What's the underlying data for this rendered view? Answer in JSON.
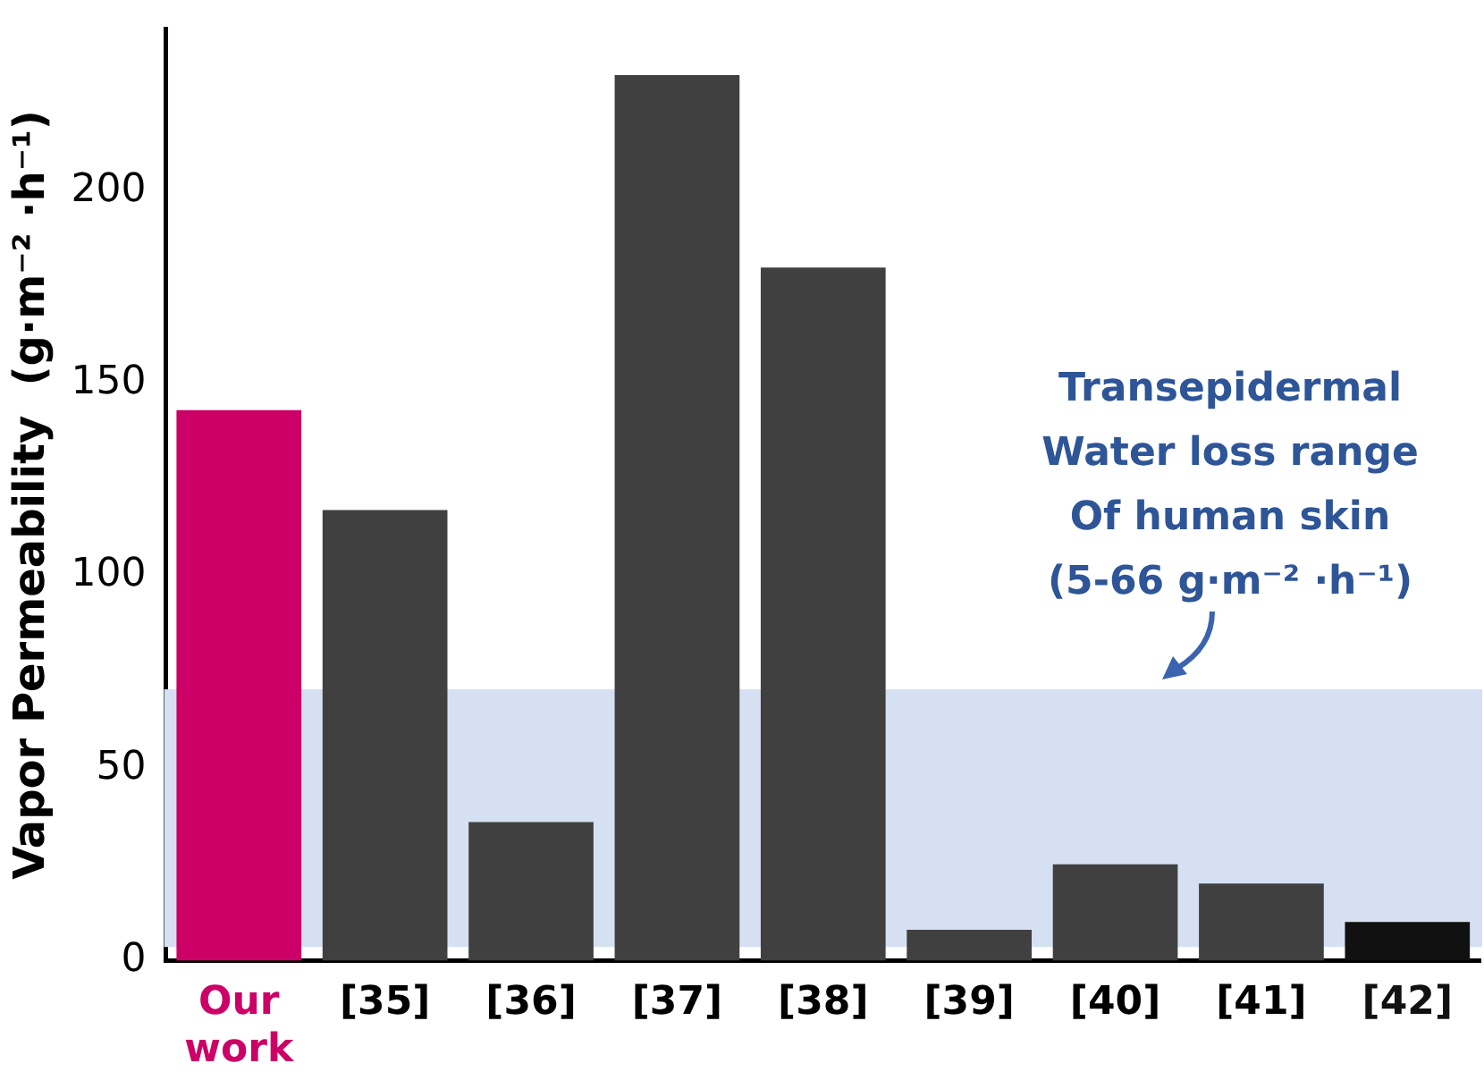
{
  "chart_data": {
    "type": "bar",
    "ylabel": "Vapor Permeability  (g·m⁻² ·h⁻¹)",
    "categories": [
      "Our work",
      "[35]",
      "[36]",
      "[37]",
      "[38]",
      "[39]",
      "[40]",
      "[41]",
      "[42]"
    ],
    "values": [
      143,
      117,
      36,
      230,
      180,
      8,
      25,
      20,
      10
    ],
    "colors": [
      "#cc0066",
      "#404040",
      "#404040",
      "#404040",
      "#404040",
      "#404040",
      "#404040",
      "#404040",
      "#111111"
    ],
    "ylim": [
      0,
      242
    ],
    "yticks": [
      0,
      50,
      100,
      150,
      200
    ],
    "grid": false,
    "legend": false,
    "bands": [
      {
        "axis": "y",
        "from": 4,
        "to": 70,
        "color": "#d5e1f3",
        "label": "Transepidermal\nWater loss range\nOf human skin\n(5-66 g·m⁻² ·h⁻¹)"
      }
    ]
  }
}
